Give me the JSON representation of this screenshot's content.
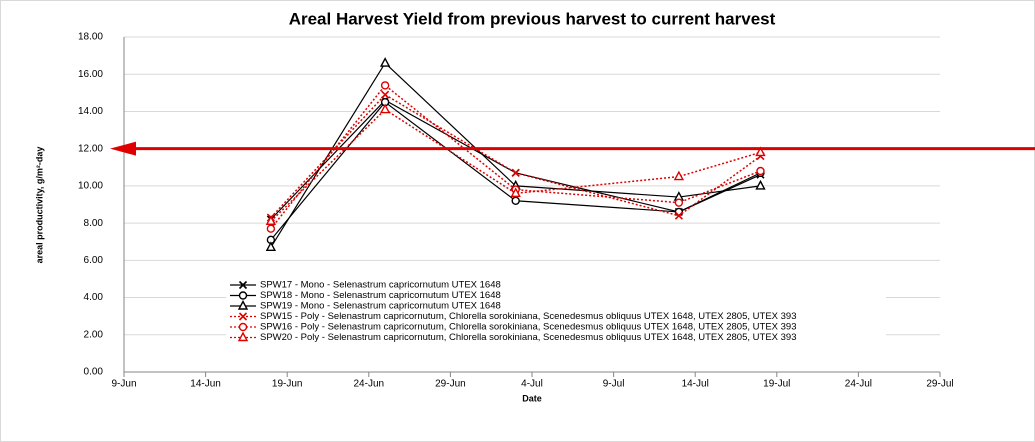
{
  "chart_data": {
    "type": "line",
    "title": "Areal Harvest Yield from previous harvest to current harvest",
    "x_label": "Date",
    "y_label": "areal productivity, g/m²-day",
    "x": [
      "18-Jun",
      "25-Jun",
      "3-Jul",
      "13-Jul",
      "18-Jul"
    ],
    "xlim": [
      "9-Jun",
      "29-Jul"
    ],
    "xticks": [
      "9-Jun",
      "14-Jun",
      "19-Jun",
      "24-Jun",
      "29-Jun",
      "4-Jul",
      "9-Jul",
      "14-Jul",
      "19-Jul",
      "24-Jul",
      "29-Jul"
    ],
    "ylim": [
      0,
      18
    ],
    "yticks": [
      {
        "value": 0,
        "label": "0.00"
      },
      {
        "value": 2,
        "label": "2.00"
      },
      {
        "value": 4,
        "label": "4.00"
      },
      {
        "value": 6,
        "label": "6.00"
      },
      {
        "value": 8,
        "label": "8.00"
      },
      {
        "value": 10,
        "label": "10.00"
      },
      {
        "value": 12,
        "label": "12.00"
      },
      {
        "value": 14,
        "label": "14.00"
      },
      {
        "value": 16,
        "label": "16.00"
      },
      {
        "value": 18,
        "label": "18.00"
      }
    ],
    "grid": true,
    "legend": "lower left",
    "reference_arrow": {
      "value": 12,
      "color": "#e00000"
    },
    "series": [
      {
        "name": "SPW17 - Mono - Selenastrum capricornutum UTEX 1648",
        "color": "#000000",
        "marker": "x",
        "dashed": false,
        "values": [
          8.2,
          14.6,
          10.7,
          8.6,
          10.6
        ]
      },
      {
        "name": "SPW18 - Mono - Selenastrum capricornutum UTEX 1648",
        "color": "#000000",
        "marker": "circle",
        "dashed": false,
        "values": [
          7.1,
          14.5,
          9.2,
          8.6,
          10.7
        ]
      },
      {
        "name": "SPW19 - Mono - Selenastrum capricornutum UTEX 1648",
        "color": "#000000",
        "marker": "triangle",
        "dashed": false,
        "values": [
          6.7,
          16.6,
          10.0,
          9.4,
          10.0
        ]
      },
      {
        "name": "SPW15 - Poly - Selenastrum capricornutum, Chlorella sorokiniana, Scenedesmus obliquus UTEX 1648, UTEX 2805, UTEX 393",
        "color": "#e00000",
        "marker": "x",
        "dashed": true,
        "values": [
          8.3,
          14.9,
          10.7,
          8.4,
          11.6
        ]
      },
      {
        "name": "SPW16 - Poly - Selenastrum capricornutum, Chlorella sorokiniana, Scenedesmus obliquus UTEX 1648, UTEX 2805, UTEX 393",
        "color": "#e00000",
        "marker": "circle",
        "dashed": true,
        "values": [
          7.7,
          15.4,
          9.8,
          9.1,
          10.8
        ]
      },
      {
        "name": "SPW20 - Poly - Selenastrum capricornutum, Chlorella sorokiniana, Scenedesmus obliquus UTEX 1648, UTEX 2805, UTEX 393",
        "color": "#e00000",
        "marker": "triangle",
        "dashed": true,
        "values": [
          8.1,
          14.1,
          9.6,
          10.5,
          11.8
        ]
      }
    ]
  }
}
